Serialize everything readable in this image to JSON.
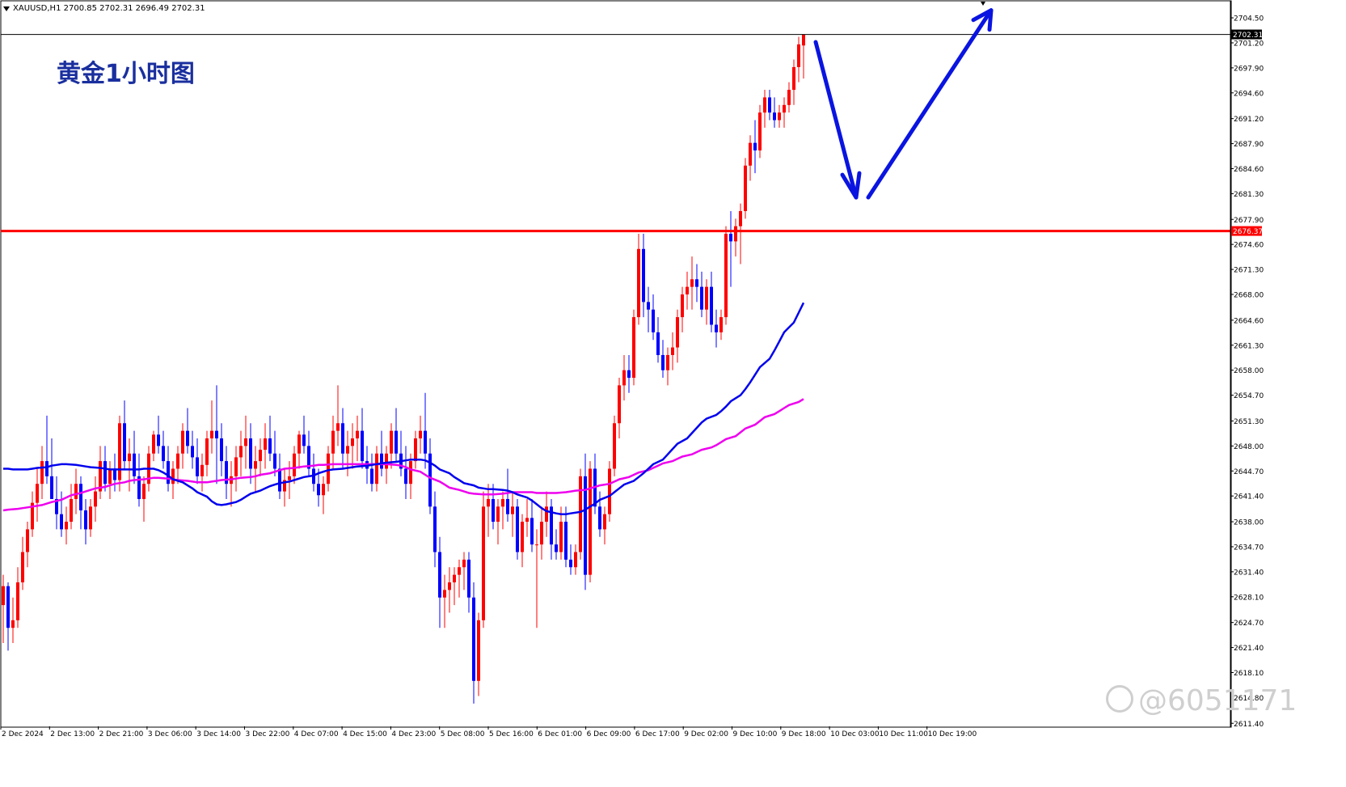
{
  "header": {
    "text": "XAUUSD,H1  2700.85 2702.31 2696.49 2702.31"
  },
  "title": "黄金1小时图",
  "watermark": "@6051171",
  "chart_data": {
    "type": "candlestick",
    "symbol": "XAUUSD",
    "timeframe": "H1",
    "ylim": [
      2611.0,
      2706.0
    ],
    "y_ticks": [
      2704.5,
      2701.2,
      2697.9,
      2694.6,
      2691.2,
      2687.9,
      2684.6,
      2681.3,
      2677.9,
      2674.6,
      2671.3,
      2668.0,
      2664.6,
      2661.3,
      2658.0,
      2654.7,
      2651.3,
      2648.0,
      2644.7,
      2641.4,
      2638.0,
      2634.7,
      2631.4,
      2628.1,
      2624.7,
      2621.4,
      2618.1,
      2614.8,
      2611.4
    ],
    "x_ticks": [
      "2 Dec 2024",
      "2 Dec 13:00",
      "2 Dec 21:00",
      "3 Dec 06:00",
      "3 Dec 14:00",
      "3 Dec 22:00",
      "4 Dec 07:00",
      "4 Dec 15:00",
      "4 Dec 23:00",
      "5 Dec 08:00",
      "5 Dec 16:00",
      "6 Dec 01:00",
      "6 Dec 09:00",
      "6 Dec 17:00",
      "9 Dec 02:00",
      "9 Dec 10:00",
      "9 Dec 18:00",
      "10 Dec 03:00",
      "10 Dec 11:00",
      "10 Dec 19:00"
    ],
    "current_price": 2702.31,
    "current_price_label": "2702.31",
    "resistance_level": 2676.37,
    "resistance_label": "2676.37",
    "colors": {
      "bull": "#ff0000",
      "bear": "#0000ff",
      "ma_fast": "#0000ee",
      "ma_slow": "#ee00ee",
      "arrow": "#0a14e0",
      "hline": "#ff0000"
    },
    "candles": [
      [
        2627.0,
        2631.0,
        2622.0,
        2629.5
      ],
      [
        2629.5,
        2630.0,
        2621.0,
        2624.0
      ],
      [
        2624.0,
        2628.0,
        2622.0,
        2625.0
      ],
      [
        2625.0,
        2632.0,
        2624.0,
        2630.0
      ],
      [
        2630.0,
        2636.0,
        2629.0,
        2634.0
      ],
      [
        2634.0,
        2638.0,
        2632.0,
        2637.0
      ],
      [
        2637.0,
        2642.0,
        2636.0,
        2640.5
      ],
      [
        2640.5,
        2645.0,
        2638.0,
        2643.0
      ],
      [
        2643.0,
        2648.0,
        2641.0,
        2646.0
      ],
      [
        2646.0,
        2652.0,
        2643.0,
        2644.0
      ],
      [
        2644.0,
        2649.0,
        2641.0,
        2641.0
      ],
      [
        2641.0,
        2644.0,
        2637.0,
        2639.0
      ],
      [
        2639.0,
        2642.0,
        2636.0,
        2637.0
      ],
      [
        2637.0,
        2640.0,
        2635.0,
        2638.0
      ],
      [
        2638.0,
        2643.0,
        2637.0,
        2641.0
      ],
      [
        2641.0,
        2645.0,
        2639.0,
        2643.0
      ],
      [
        2643.0,
        2644.0,
        2637.0,
        2639.5
      ],
      [
        2639.5,
        2641.0,
        2635.0,
        2637.0
      ],
      [
        2637.0,
        2641.0,
        2636.0,
        2640.0
      ],
      [
        2640.0,
        2644.0,
        2638.0,
        2642.0
      ],
      [
        2642.0,
        2648.0,
        2641.0,
        2646.0
      ],
      [
        2646.0,
        2648.0,
        2642.0,
        2643.0
      ],
      [
        2643.0,
        2646.0,
        2641.0,
        2645.0
      ],
      [
        2645.0,
        2647.0,
        2642.0,
        2643.5
      ],
      [
        2643.5,
        2652.0,
        2642.0,
        2651.0
      ],
      [
        2651.0,
        2654.0,
        2645.0,
        2646.0
      ],
      [
        2646.0,
        2649.0,
        2642.0,
        2647.0
      ],
      [
        2647.0,
        2650.0,
        2643.0,
        2644.0
      ],
      [
        2644.0,
        2647.0,
        2640.0,
        2641.0
      ],
      [
        2641.0,
        2644.0,
        2638.0,
        2643.0
      ],
      [
        2643.0,
        2648.0,
        2642.0,
        2647.0
      ],
      [
        2647.0,
        2650.0,
        2646.0,
        2649.5
      ],
      [
        2649.5,
        2652.0,
        2647.0,
        2648.0
      ],
      [
        2648.0,
        2650.0,
        2645.0,
        2646.0
      ],
      [
        2646.0,
        2648.0,
        2642.0,
        2643.0
      ],
      [
        2643.0,
        2646.0,
        2641.0,
        2645.0
      ],
      [
        2645.0,
        2648.0,
        2643.0,
        2647.0
      ],
      [
        2647.0,
        2651.0,
        2645.0,
        2650.0
      ],
      [
        2650.0,
        2653.0,
        2647.0,
        2648.0
      ],
      [
        2648.0,
        2650.0,
        2645.0,
        2646.5
      ],
      [
        2646.5,
        2649.0,
        2643.0,
        2644.0
      ],
      [
        2644.0,
        2647.0,
        2642.0,
        2645.5
      ],
      [
        2645.5,
        2650.0,
        2644.0,
        2649.0
      ],
      [
        2649.0,
        2654.0,
        2647.0,
        2650.0
      ],
      [
        2650.0,
        2656.0,
        2643.0,
        2649.0
      ],
      [
        2649.0,
        2651.0,
        2644.0,
        2646.0
      ],
      [
        2646.0,
        2648.0,
        2641.0,
        2643.0
      ],
      [
        2643.0,
        2646.0,
        2640.0,
        2644.0
      ],
      [
        2644.0,
        2648.0,
        2642.0,
        2646.5
      ],
      [
        2646.5,
        2650.0,
        2644.0,
        2648.0
      ],
      [
        2648.0,
        2652.0,
        2645.0,
        2649.0
      ],
      [
        2649.0,
        2651.0,
        2643.0,
        2645.0
      ],
      [
        2645.0,
        2648.0,
        2642.0,
        2646.0
      ],
      [
        2646.0,
        2649.0,
        2644.0,
        2647.5
      ],
      [
        2647.5,
        2651.0,
        2645.0,
        2649.0
      ],
      [
        2649.0,
        2652.0,
        2646.0,
        2647.0
      ],
      [
        2647.0,
        2650.0,
        2644.0,
        2645.0
      ],
      [
        2645.0,
        2647.0,
        2641.0,
        2642.0
      ],
      [
        2642.0,
        2645.0,
        2640.0,
        2643.5
      ],
      [
        2643.5,
        2646.0,
        2641.0,
        2644.0
      ],
      [
        2644.0,
        2648.0,
        2643.0,
        2647.0
      ],
      [
        2647.0,
        2650.0,
        2645.0,
        2649.5
      ],
      [
        2649.5,
        2652.0,
        2647.0,
        2648.0
      ],
      [
        2648.0,
        2650.0,
        2644.0,
        2645.0
      ],
      [
        2645.0,
        2647.0,
        2642.0,
        2643.0
      ],
      [
        2643.0,
        2645.0,
        2640.0,
        2641.5
      ],
      [
        2641.5,
        2644.0,
        2639.0,
        2643.0
      ],
      [
        2643.0,
        2648.0,
        2642.0,
        2647.0
      ],
      [
        2647.0,
        2652.0,
        2645.0,
        2650.0
      ],
      [
        2650.0,
        2656.0,
        2648.0,
        2651.0
      ],
      [
        2651.0,
        2653.0,
        2645.0,
        2647.0
      ],
      [
        2647.0,
        2650.0,
        2644.0,
        2648.0
      ],
      [
        2648.0,
        2651.0,
        2645.0,
        2649.0
      ],
      [
        2649.0,
        2652.0,
        2646.0,
        2650.0
      ],
      [
        2650.0,
        2653.0,
        2645.0,
        2646.0
      ],
      [
        2646.0,
        2648.0,
        2643.0,
        2645.0
      ],
      [
        2645.0,
        2647.0,
        2642.0,
        2643.0
      ],
      [
        2643.0,
        2648.0,
        2642.0,
        2647.0
      ],
      [
        2647.0,
        2650.0,
        2644.0,
        2645.0
      ],
      [
        2645.0,
        2648.0,
        2643.0,
        2647.0
      ],
      [
        2647.0,
        2651.0,
        2645.0,
        2650.0
      ],
      [
        2650.0,
        2653.0,
        2646.0,
        2647.0
      ],
      [
        2647.0,
        2650.0,
        2644.0,
        2645.0
      ],
      [
        2645.0,
        2648.0,
        2641.0,
        2643.0
      ],
      [
        2643.0,
        2647.0,
        2641.0,
        2646.0
      ],
      [
        2646.0,
        2650.0,
        2645.0,
        2649.0
      ],
      [
        2649.0,
        2652.0,
        2647.0,
        2650.0
      ],
      [
        2650.0,
        2655.0,
        2645.0,
        2647.0
      ],
      [
        2647.0,
        2649.0,
        2639.0,
        2640.0
      ],
      [
        2640.0,
        2642.0,
        2632.0,
        2634.0
      ],
      [
        2634.0,
        2636.0,
        2624.0,
        2628.0
      ],
      [
        2628.0,
        2631.0,
        2624.0,
        2629.0
      ],
      [
        2629.0,
        2632.0,
        2626.0,
        2630.0
      ],
      [
        2630.0,
        2632.0,
        2627.0,
        2631.0
      ],
      [
        2631.0,
        2633.0,
        2628.0,
        2632.0
      ],
      [
        2632.0,
        2634.0,
        2629.0,
        2633.0
      ],
      [
        2633.0,
        2634.0,
        2626.0,
        2628.0
      ],
      [
        2628.0,
        2630.0,
        2614.0,
        2617.0
      ],
      [
        2617.0,
        2626.0,
        2615.0,
        2625.0
      ],
      [
        2625.0,
        2642.0,
        2624.0,
        2640.0
      ],
      [
        2640.0,
        2643.0,
        2636.0,
        2641.0
      ],
      [
        2641.0,
        2643.0,
        2637.0,
        2638.0
      ],
      [
        2638.0,
        2641.0,
        2635.0,
        2640.0
      ],
      [
        2640.0,
        2642.0,
        2637.0,
        2641.0
      ],
      [
        2641.0,
        2645.0,
        2638.0,
        2639.0
      ],
      [
        2639.0,
        2642.0,
        2636.0,
        2640.0
      ],
      [
        2640.0,
        2641.0,
        2633.0,
        2634.0
      ],
      [
        2634.0,
        2639.0,
        2632.0,
        2638.0
      ],
      [
        2638.0,
        2641.0,
        2636.0,
        2638.5
      ],
      [
        2638.5,
        2641.0,
        2634.0,
        2635.0
      ],
      [
        2635.0,
        2637.0,
        2624.0,
        2635.0
      ],
      [
        2635.0,
        2640.0,
        2633.0,
        2638.0
      ],
      [
        2638.0,
        2642.0,
        2636.0,
        2640.0
      ],
      [
        2640.0,
        2641.0,
        2633.0,
        2635.0
      ],
      [
        2635.0,
        2637.0,
        2633.0,
        2634.0
      ],
      [
        2634.0,
        2640.0,
        2633.0,
        2638.0
      ],
      [
        2638.0,
        2640.0,
        2632.0,
        2633.0
      ],
      [
        2633.0,
        2635.0,
        2631.0,
        2632.0
      ],
      [
        2632.0,
        2635.0,
        2631.0,
        2634.0
      ],
      [
        2634.0,
        2645.0,
        2633.0,
        2644.0
      ],
      [
        2644.0,
        2647.0,
        2629.0,
        2631.0
      ],
      [
        2631.0,
        2646.0,
        2630.0,
        2645.0
      ],
      [
        2645.0,
        2647.0,
        2639.0,
        2640.0
      ],
      [
        2640.0,
        2642.0,
        2636.0,
        2637.0
      ],
      [
        2637.0,
        2640.0,
        2635.0,
        2639.0
      ],
      [
        2639.0,
        2646.0,
        2638.0,
        2645.0
      ],
      [
        2645.0,
        2652.0,
        2644.0,
        2651.0
      ],
      [
        2651.0,
        2657.0,
        2649.0,
        2656.0
      ],
      [
        2656.0,
        2660.0,
        2654.0,
        2658.0
      ],
      [
        2658.0,
        2660.0,
        2655.0,
        2657.0
      ],
      [
        2657.0,
        2666.0,
        2656.0,
        2665.0
      ],
      [
        2665.0,
        2676.0,
        2664.0,
        2674.0
      ],
      [
        2674.0,
        2676.0,
        2665.0,
        2667.0
      ],
      [
        2667.0,
        2669.0,
        2663.0,
        2666.0
      ],
      [
        2666.0,
        2668.0,
        2662.0,
        2663.0
      ],
      [
        2663.0,
        2665.0,
        2659.0,
        2660.0
      ],
      [
        2660.0,
        2662.0,
        2657.0,
        2658.0
      ],
      [
        2658.0,
        2661.0,
        2656.0,
        2660.0
      ],
      [
        2660.0,
        2663.0,
        2658.0,
        2661.0
      ],
      [
        2661.0,
        2666.0,
        2659.0,
        2665.0
      ],
      [
        2665.0,
        2669.0,
        2663.0,
        2668.0
      ],
      [
        2668.0,
        2671.0,
        2666.0,
        2669.0
      ],
      [
        2669.0,
        2673.0,
        2666.0,
        2670.0
      ],
      [
        2670.0,
        2672.0,
        2667.0,
        2669.0
      ],
      [
        2669.0,
        2671.0,
        2665.0,
        2666.0
      ],
      [
        2666.0,
        2670.0,
        2664.0,
        2669.0
      ],
      [
        2669.0,
        2671.0,
        2663.0,
        2664.0
      ],
      [
        2664.0,
        2666.0,
        2661.0,
        2663.0
      ],
      [
        2663.0,
        2666.0,
        2662.0,
        2665.0
      ],
      [
        2665.0,
        2677.0,
        2664.0,
        2676.0
      ],
      [
        2676.0,
        2679.0,
        2669.0,
        2675.0
      ],
      [
        2675.0,
        2678.0,
        2673.0,
        2677.0
      ],
      [
        2677.0,
        2680.0,
        2672.0,
        2679.0
      ],
      [
        2679.0,
        2686.0,
        2678.0,
        2685.0
      ],
      [
        2685.0,
        2689.0,
        2683.0,
        2688.0
      ],
      [
        2688.0,
        2691.0,
        2684.0,
        2687.0
      ],
      [
        2687.0,
        2693.0,
        2686.0,
        2692.0
      ],
      [
        2692.0,
        2695.0,
        2690.0,
        2694.0
      ],
      [
        2694.0,
        2695.0,
        2691.0,
        2692.0
      ],
      [
        2692.0,
        2694.0,
        2690.0,
        2691.0
      ],
      [
        2691.0,
        2693.0,
        2690.0,
        2692.0
      ],
      [
        2692.0,
        2694.0,
        2690.0,
        2693.0
      ],
      [
        2693.0,
        2696.0,
        2692.0,
        2695.0
      ],
      [
        2695.0,
        2699.0,
        2693.0,
        2698.0
      ],
      [
        2698.0,
        2702.0,
        2696.0,
        2701.0
      ],
      [
        2700.85,
        2702.31,
        2696.49,
        2702.31
      ]
    ],
    "ma_fast": [
      2645.0,
      2645.0,
      2644.9,
      2644.9,
      2644.9,
      2645.0,
      2645.1,
      2645.2,
      2645.4,
      2645.5,
      2645.6,
      2645.6,
      2645.5,
      2645.4,
      2645.3,
      2645.2,
      2645.1,
      2645.0,
      2644.9,
      2644.9,
      2644.9,
      2644.9,
      2644.9,
      2644.9,
      2645.0,
      2645.0,
      2644.8,
      2644.5,
      2644.1,
      2643.6,
      2643.2,
      2642.8,
      2642.4,
      2641.9,
      2641.3,
      2640.7,
      2640.3,
      2640.2,
      2640.3,
      2640.6,
      2640.9,
      2641.3,
      2641.7,
      2642.1,
      2642.4,
      2642.7,
      2642.9,
      2643.1,
      2643.3,
      2643.5,
      2643.7,
      2643.9,
      2644.1,
      2644.4,
      2644.6,
      2644.8,
      2644.9,
      2645.0,
      2645.1,
      2645.2,
      2645.3,
      2645.4,
      2645.5,
      2645.6,
      2645.7,
      2645.8,
      2645.9,
      2646.0,
      2646.1,
      2646.2,
      2646.2,
      2646.1,
      2645.8,
      2645.4,
      2644.9,
      2644.4,
      2643.9,
      2643.5,
      2643.1,
      2642.8,
      2642.5,
      2642.4,
      2642.3,
      2642.3,
      2642.2,
      2642.1,
      2641.9,
      2641.6,
      2641.2,
      2640.8,
      2640.3,
      2639.8,
      2639.4,
      2639.1,
      2639.0,
      2639.0,
      2639.1,
      2639.3,
      2639.6,
      2640.0,
      2640.4,
      2640.9,
      2641.4,
      2641.9,
      2642.4,
      2642.9,
      2643.4,
      2643.9,
      2644.4,
      2645.0,
      2645.6,
      2646.2,
      2646.9,
      2647.6,
      2648.3,
      2649.0,
      2649.7,
      2650.4,
      2651.1,
      2651.6,
      2652.1,
      2652.6,
      2653.2,
      2653.9,
      2654.7,
      2655.5,
      2656.4,
      2657.4,
      2658.4,
      2659.5,
      2660.6,
      2661.8,
      2663.0,
      2664.3,
      2665.6,
      2666.9
    ],
    "ma_slow": [
      2639.5,
      2639.6,
      2639.7,
      2639.8,
      2639.9,
      2640.0,
      2640.2,
      2640.4,
      2640.6,
      2640.9,
      2641.2,
      2641.5,
      2641.8,
      2642.0,
      2642.2,
      2642.4,
      2642.6,
      2642.8,
      2643.0,
      2643.2,
      2643.4,
      2643.5,
      2643.6,
      2643.7,
      2643.8,
      2643.8,
      2643.7,
      2643.6,
      2643.5,
      2643.4,
      2643.3,
      2643.2,
      2643.2,
      2643.3,
      2643.4,
      2643.5,
      2643.6,
      2643.7,
      2643.8,
      2643.9,
      2644.0,
      2644.2,
      2644.4,
      2644.6,
      2644.8,
      2645.0,
      2645.1,
      2645.2,
      2645.3,
      2645.4,
      2645.5,
      2645.5,
      2645.6,
      2645.6,
      2645.6,
      2645.6,
      2645.6,
      2645.6,
      2645.6,
      2645.6,
      2645.6,
      2645.6,
      2645.5,
      2645.4,
      2645.2,
      2644.9,
      2644.6,
      2644.2,
      2643.8,
      2643.3,
      2642.9,
      2642.5,
      2642.2,
      2642.0,
      2641.8,
      2641.7,
      2641.6,
      2641.6,
      2641.6,
      2641.7,
      2641.8,
      2641.9,
      2641.9,
      2641.9,
      2641.9,
      2641.8,
      2641.8,
      2641.8,
      2641.8,
      2641.9,
      2642.0,
      2642.1,
      2642.2,
      2642.4,
      2642.6,
      2642.8,
      2643.0,
      2643.3,
      2643.6,
      2643.9,
      2644.2,
      2644.5,
      2644.8,
      2645.1,
      2645.4,
      2645.7,
      2646.0,
      2646.3,
      2646.6,
      2646.9,
      2647.2,
      2647.5,
      2647.8,
      2648.1,
      2648.5,
      2648.9,
      2649.3,
      2649.8,
      2650.3,
      2650.8,
      2651.3,
      2651.8,
      2652.2,
      2652.6,
      2653.0,
      2653.4,
      2653.8,
      2654.2
    ]
  }
}
